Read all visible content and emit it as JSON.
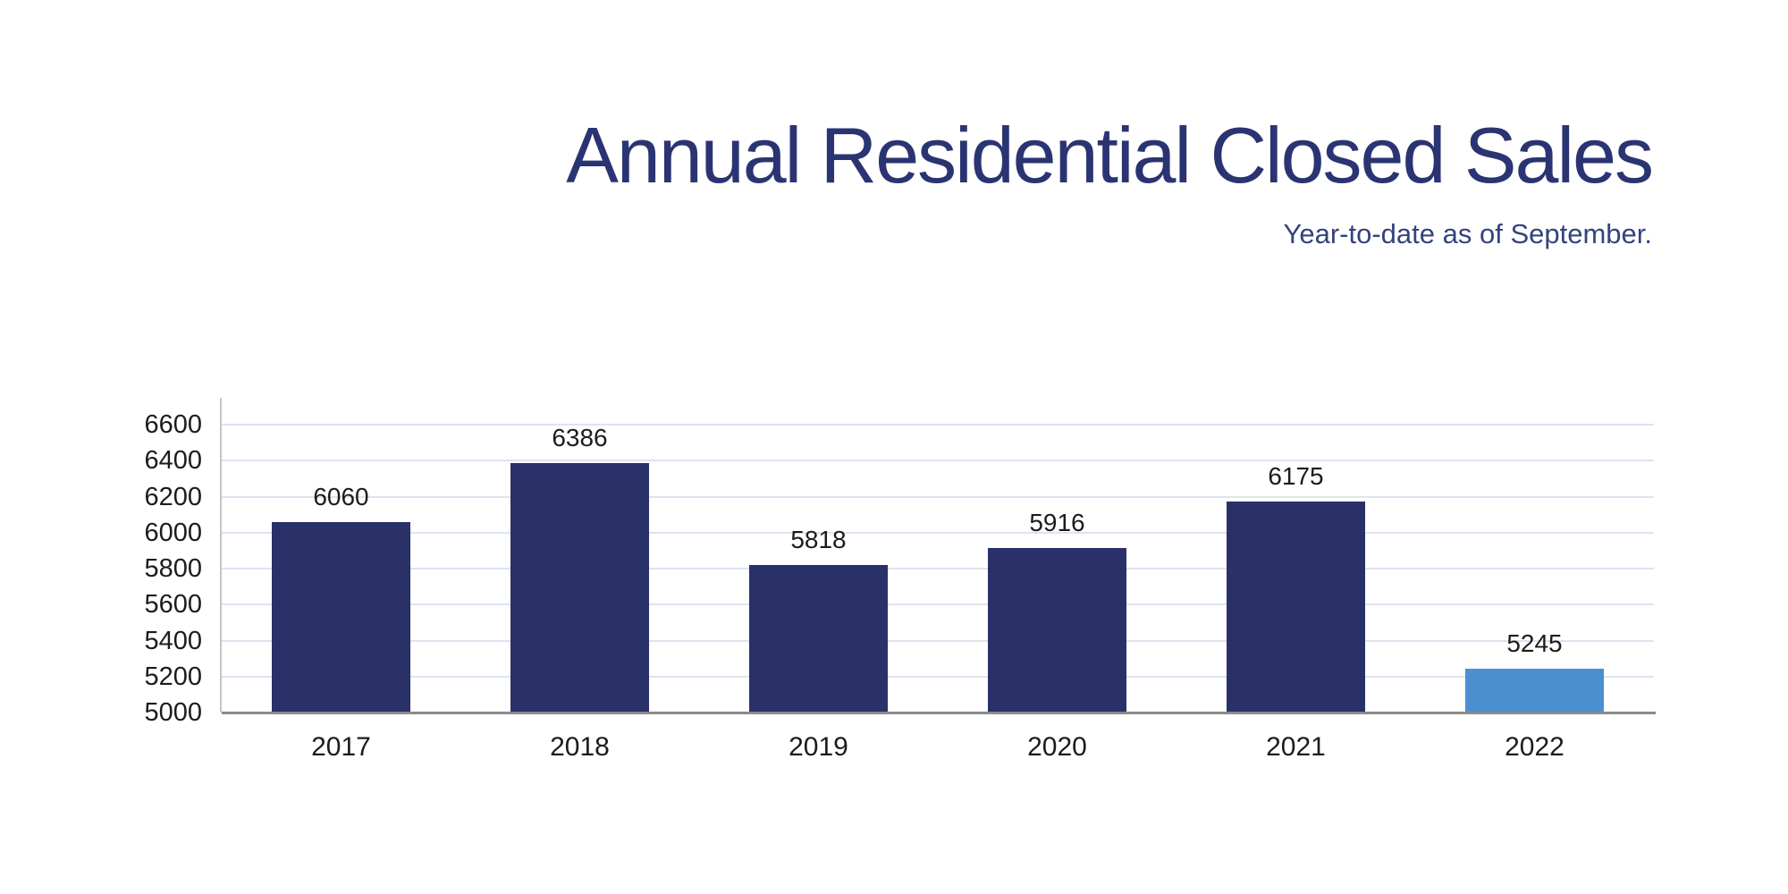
{
  "header": {
    "title": "Annual Residential Closed Sales",
    "subtitle": "Year-to-date as of September.",
    "title_color": "#2B3472",
    "subtitle_color": "#35437D"
  },
  "chart_data": {
    "type": "bar",
    "title": "Annual Residential Closed Sales",
    "subtitle": "Year-to-date as of September.",
    "categories": [
      "2017",
      "2018",
      "2019",
      "2020",
      "2021",
      "2022"
    ],
    "values": [
      6060,
      6386,
      5818,
      5916,
      6175,
      5245
    ],
    "value_labels": [
      "6060",
      "6386",
      "5818",
      "5916",
      "6175",
      "5245"
    ],
    "yticks": [
      5000,
      5200,
      5400,
      5600,
      5800,
      6000,
      6200,
      6400,
      6600
    ],
    "ytick_labels": [
      "5000",
      "5200",
      "5400",
      "5600",
      "5800",
      "6000",
      "6200",
      "6400",
      "6600"
    ],
    "ylim": [
      5000,
      6750
    ],
    "grid": true,
    "legend_position": "none",
    "xlabel": "",
    "ylabel": "",
    "colors": {
      "bar_default": "#2A3068",
      "bar_highlight": "#4A90D0",
      "highlight_category": "2022",
      "gridline": "#DDE3F0",
      "y_axis_line": "#C5C5C5",
      "x_axis_line": "#8A8A8A",
      "tick_text": "#1c1c1c"
    }
  }
}
